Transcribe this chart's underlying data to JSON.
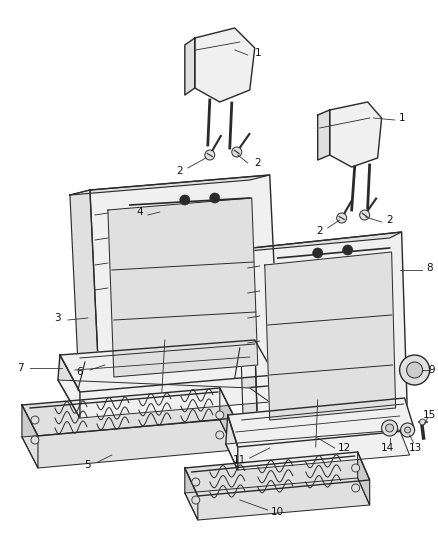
{
  "bg_color": "#ffffff",
  "line_color": "#2a2a2a",
  "label_color": "#111111",
  "figsize": [
    4.38,
    5.33
  ],
  "dpi": 100,
  "lw": 1.0,
  "label_fs": 7.5
}
